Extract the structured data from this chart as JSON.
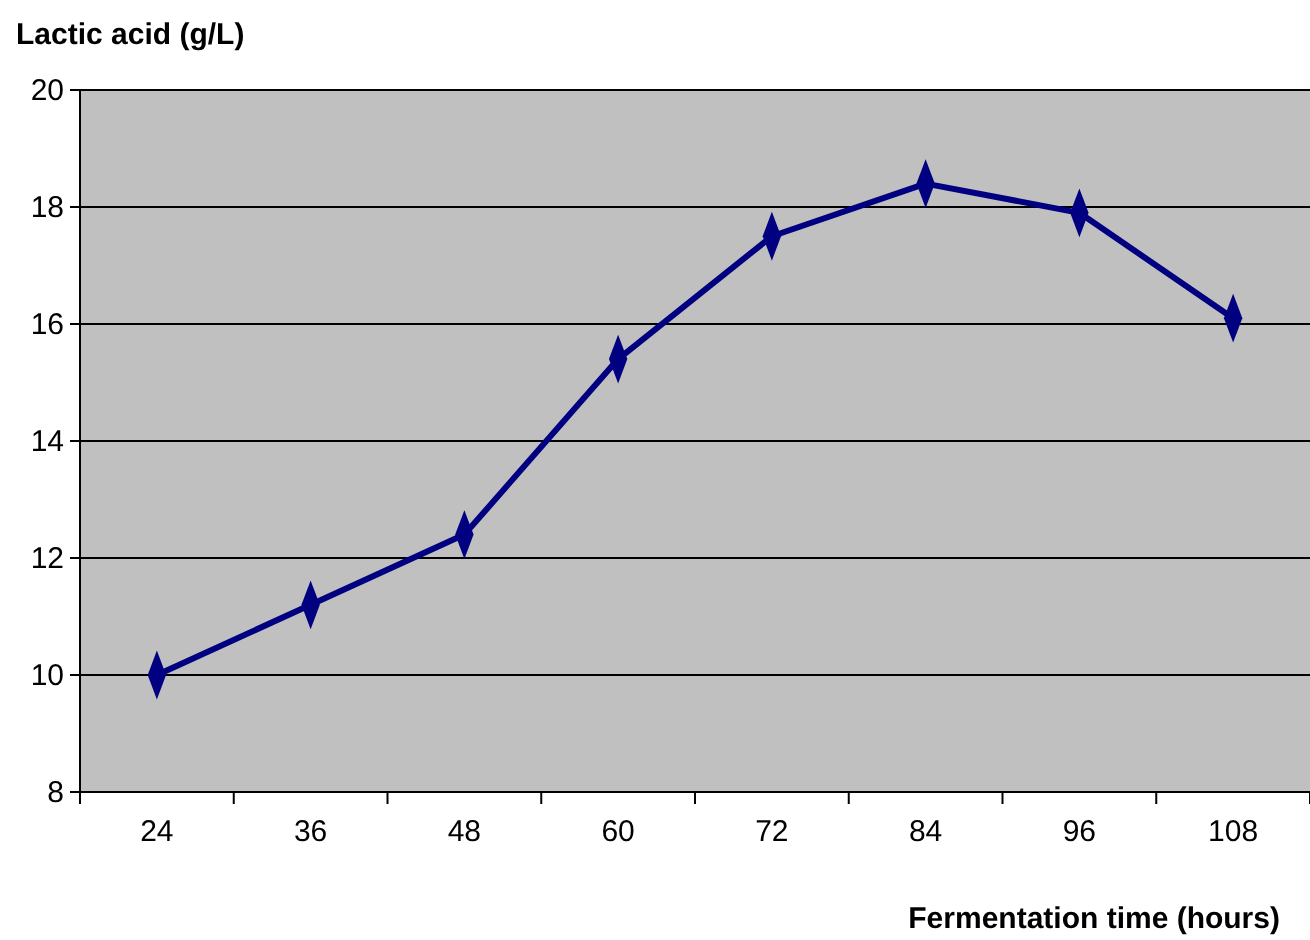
{
  "chart_data": {
    "type": "line",
    "ylabel": "Lactic acid (g/L)",
    "xlabel": "Fermentation time (hours)",
    "categories": [
      "24",
      "36",
      "48",
      "60",
      "72",
      "84",
      "96",
      "108"
    ],
    "series": [
      {
        "color": "#000080",
        "values": [
          10.0,
          11.2,
          12.4,
          15.4,
          17.5,
          18.4,
          17.9,
          16.1
        ]
      }
    ],
    "ylim": [
      8,
      20
    ],
    "yticks": [
      8,
      10,
      12,
      14,
      16,
      18,
      20
    ],
    "grid": "y",
    "marker": "diamond",
    "line_style": "solid"
  }
}
